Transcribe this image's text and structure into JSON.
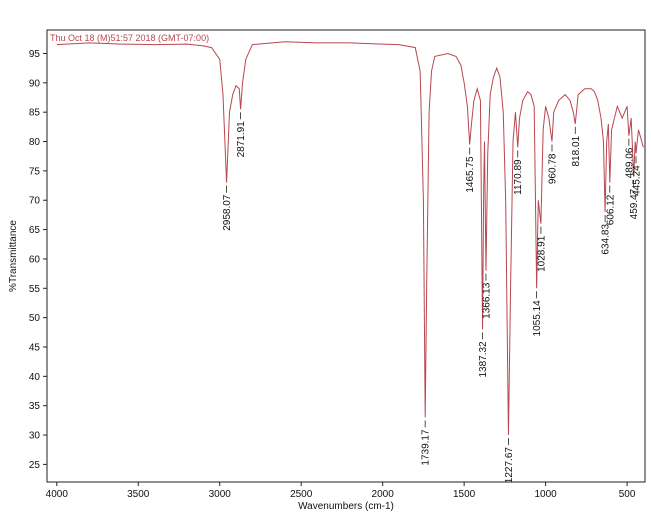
{
  "chart_data": {
    "type": "line",
    "title": "Thu Oct 18 (M)51:57 2018 (GMT-07:00)",
    "x_label": "Wavenumbers (cm-1)",
    "y_label": "%Transmittance",
    "color": "#b8474f",
    "xlim": [
      4060,
      390
    ],
    "ylim": [
      22,
      99
    ],
    "xticks": [
      4000,
      3500,
      3000,
      2500,
      2000,
      1500,
      1000,
      500
    ],
    "yticks": [
      25,
      30,
      35,
      40,
      45,
      50,
      55,
      60,
      65,
      70,
      75,
      80,
      85,
      90,
      95
    ],
    "x": [
      4000,
      3800,
      3600,
      3400,
      3200,
      3100,
      3050,
      3000,
      2980,
      2958,
      2940,
      2920,
      2900,
      2880,
      2872,
      2860,
      2840,
      2800,
      2600,
      2400,
      2200,
      2000,
      1900,
      1800,
      1770,
      1750,
      1739,
      1730,
      1715,
      1700,
      1680,
      1600,
      1550,
      1520,
      1500,
      1480,
      1466,
      1455,
      1440,
      1420,
      1400,
      1387,
      1380,
      1375,
      1366,
      1355,
      1340,
      1320,
      1300,
      1280,
      1260,
      1245,
      1228,
      1215,
      1200,
      1185,
      1171,
      1160,
      1140,
      1110,
      1090,
      1070,
      1055,
      1045,
      1029,
      1015,
      1000,
      980,
      961,
      950,
      920,
      880,
      850,
      830,
      818,
      800,
      760,
      720,
      700,
      680,
      660,
      645,
      635,
      625,
      615,
      606,
      595,
      560,
      530,
      500,
      489,
      475,
      459,
      450,
      445,
      430,
      400
    ],
    "values": [
      96.5,
      96.8,
      96.6,
      96.5,
      96.6,
      96.3,
      96,
      94,
      88,
      73,
      85,
      88,
      89.5,
      89,
      85.5,
      90,
      94,
      96.5,
      97,
      96.8,
      96.8,
      96.6,
      96.5,
      96,
      92,
      70,
      33,
      55,
      85,
      92,
      94.5,
      95,
      94.5,
      93,
      90,
      86,
      79.5,
      83,
      87,
      89,
      87,
      48,
      72,
      80,
      58,
      78,
      88,
      91,
      92.5,
      91,
      85,
      70,
      30,
      55,
      80,
      85,
      79,
      84,
      87,
      88.5,
      88,
      86,
      55,
      70,
      66,
      82,
      86,
      84,
      80,
      85,
      87,
      88,
      87,
      85,
      83,
      88,
      89,
      89,
      88.5,
      87,
      84,
      80,
      68,
      80,
      83,
      73,
      82,
      86,
      84,
      86,
      81,
      84,
      74,
      80,
      78,
      82,
      79
    ],
    "peaks": [
      {
        "x": 2958.07,
        "y": 73
      },
      {
        "x": 2871.91,
        "y": 85.5
      },
      {
        "x": 1739.17,
        "y": 33
      },
      {
        "x": 1465.75,
        "y": 79.5
      },
      {
        "x": 1387.32,
        "y": 48
      },
      {
        "x": 1366.13,
        "y": 58
      },
      {
        "x": 1227.67,
        "y": 30
      },
      {
        "x": 1170.89,
        "y": 79
      },
      {
        "x": 1055.14,
        "y": 55
      },
      {
        "x": 1028.91,
        "y": 66
      },
      {
        "x": 960.78,
        "y": 80
      },
      {
        "x": 818.01,
        "y": 83
      },
      {
        "x": 634.83,
        "y": 68
      },
      {
        "x": 606.12,
        "y": 73
      },
      {
        "x": 489.06,
        "y": 81
      },
      {
        "x": 459.47,
        "y": 74
      },
      {
        "x": 445.24,
        "y": 78
      }
    ]
  }
}
